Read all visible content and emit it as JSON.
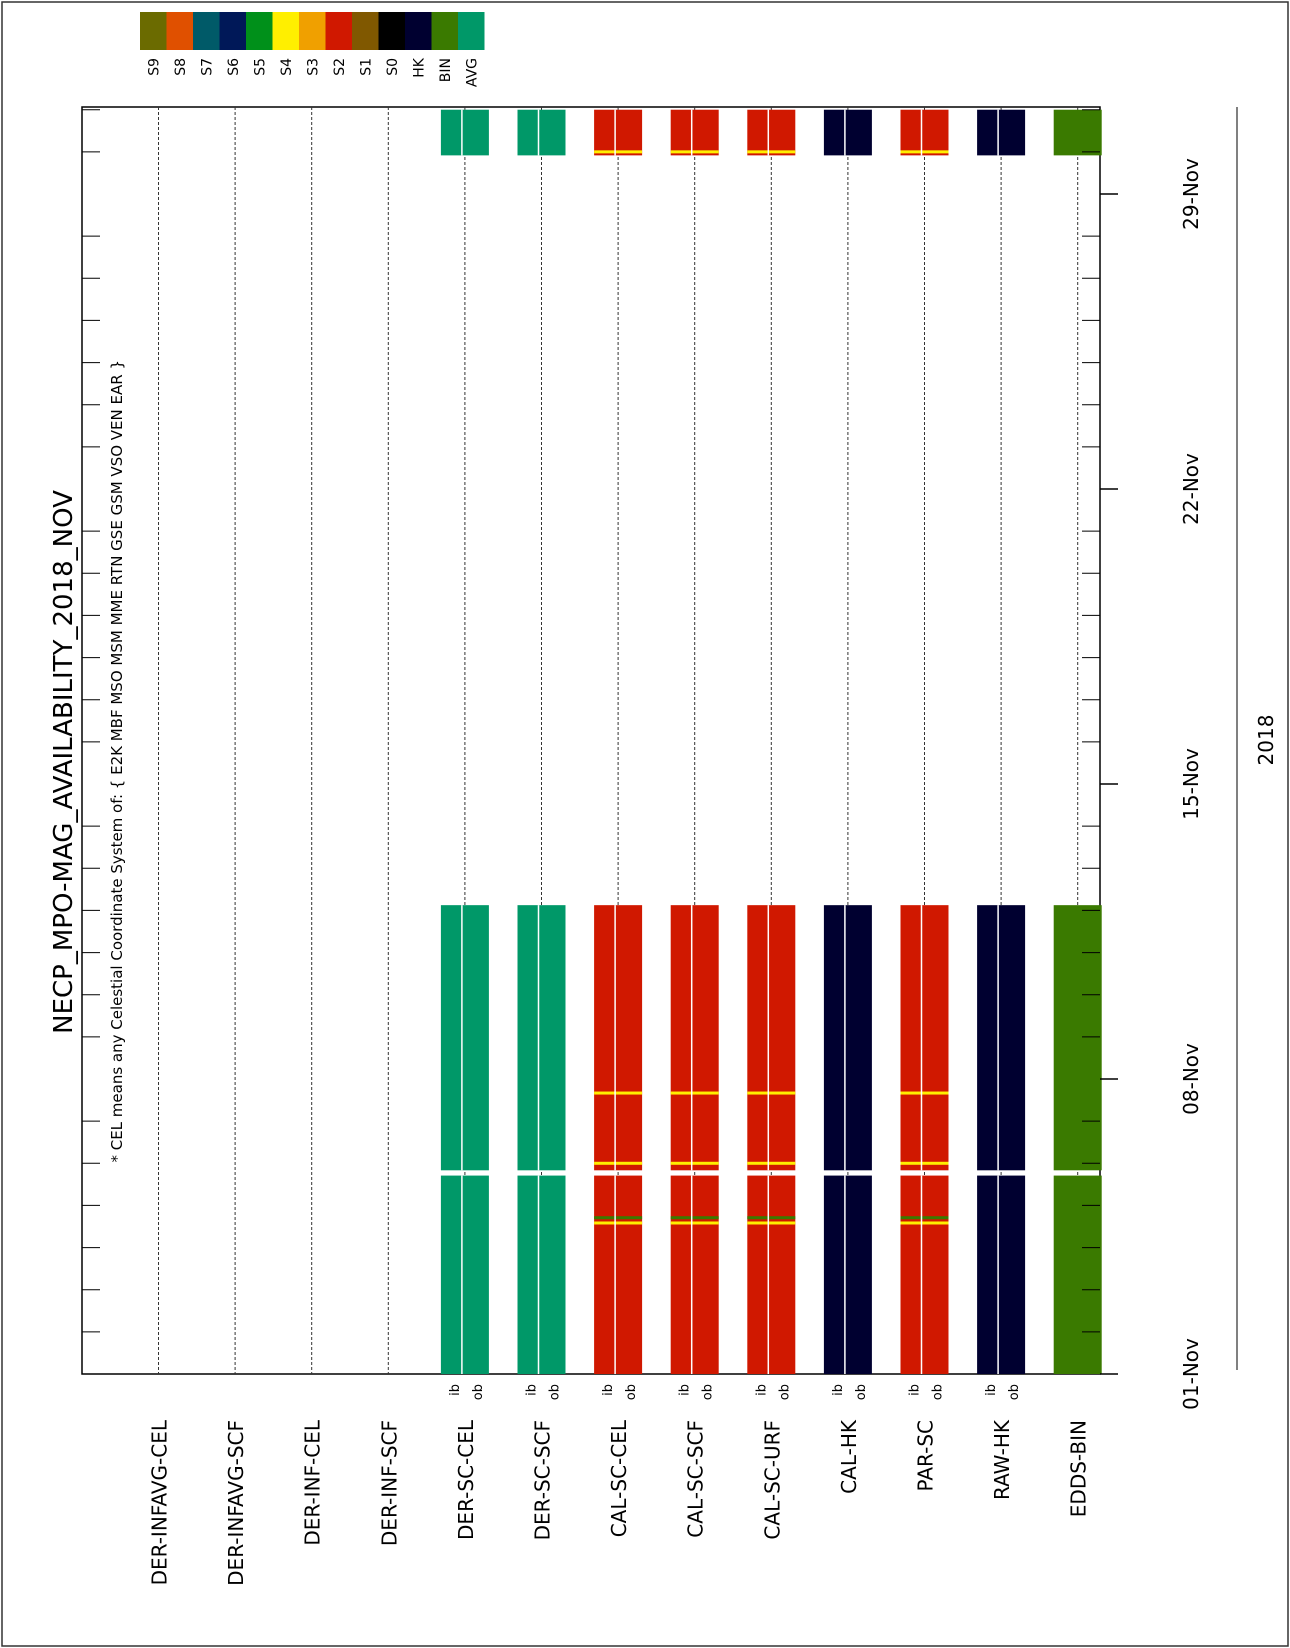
{
  "chart_data": {
    "type": "availability-timeline",
    "title": "NECP_MPO-MAG_AVAILABILITY_2018_NOV",
    "note": "* CEL means any Celestial Coordinate System of: { E2K MBF MSO MSM MME RTN GSE GSM VSO VEN EAR }",
    "year_label": "2018",
    "time_axis": {
      "start": "2018-11-01",
      "end": "2018-12-01",
      "major_ticks": [
        "2018-11-01",
        "2018-11-08",
        "2018-11-15",
        "2018-11-22",
        "2018-11-29"
      ],
      "major_labels": [
        "01-Nov",
        "08-Nov",
        "15-Nov",
        "22-Nov",
        "29-Nov"
      ],
      "minor_tick_step_days": 1
    },
    "legend": [
      {
        "label": "S9",
        "color": "#6b6b00"
      },
      {
        "label": "S8",
        "color": "#e05000"
      },
      {
        "label": "S7",
        "color": "#005a68"
      },
      {
        "label": "S6",
        "color": "#001858"
      },
      {
        "label": "S5",
        "color": "#00901a"
      },
      {
        "label": "S4",
        "color": "#ffef00"
      },
      {
        "label": "S3",
        "color": "#f0a000"
      },
      {
        "label": "S2",
        "color": "#d01800"
      },
      {
        "label": "S1",
        "color": "#805800"
      },
      {
        "label": "S0",
        "color": "#000000"
      },
      {
        "label": "HK",
        "color": "#000030"
      },
      {
        "label": "BIN",
        "color": "#3a7a00"
      },
      {
        "label": "AVG",
        "color": "#009868"
      }
    ],
    "rows": [
      {
        "name": "DER-INFAVG-CEL",
        "color": "",
        "ibob": false,
        "intervals": []
      },
      {
        "name": "DER-INFAVG-SCF",
        "color": "",
        "ibob": false,
        "intervals": []
      },
      {
        "name": "DER-INF-CEL",
        "color": "",
        "ibob": false,
        "intervals": []
      },
      {
        "name": "DER-INF-SCF",
        "color": "",
        "ibob": false,
        "intervals": []
      },
      {
        "name": "DER-SC-CEL",
        "color": "#009868",
        "ibob": true,
        "intervals": [
          [
            "2018-11-01T00:00",
            "2018-11-05T17:00"
          ],
          [
            "2018-11-05T20:00",
            "2018-11-12T03:00"
          ],
          [
            "2018-11-29T22:00",
            "2018-12-01T00:00"
          ]
        ],
        "stripes": []
      },
      {
        "name": "DER-SC-SCF",
        "color": "#009868",
        "ibob": true,
        "intervals": [
          [
            "2018-11-01T00:00",
            "2018-11-05T17:00"
          ],
          [
            "2018-11-05T20:00",
            "2018-11-12T03:00"
          ],
          [
            "2018-11-29T22:00",
            "2018-12-01T00:00"
          ]
        ],
        "stripes": []
      },
      {
        "name": "CAL-SC-CEL",
        "color": "#d01800",
        "ibob": true,
        "intervals": [
          [
            "2018-11-01T00:00",
            "2018-11-05T17:00"
          ],
          [
            "2018-11-05T20:00",
            "2018-11-12T03:00"
          ],
          [
            "2018-11-29T22:00",
            "2018-12-01T00:00"
          ]
        ],
        "stripes": [
          [
            "2018-11-04T14:00",
            "#ffef00"
          ],
          [
            "2018-11-04T17:00",
            "#3a7a00"
          ],
          [
            "2018-11-06T00:00",
            "#ffef00"
          ],
          [
            "2018-11-07T16:00",
            "#ffef00"
          ],
          [
            "2018-11-30T00:00",
            "#ffef00"
          ]
        ]
      },
      {
        "name": "CAL-SC-SCF",
        "color": "#d01800",
        "ibob": true,
        "intervals": [
          [
            "2018-11-01T00:00",
            "2018-11-05T17:00"
          ],
          [
            "2018-11-05T20:00",
            "2018-11-12T03:00"
          ],
          [
            "2018-11-29T22:00",
            "2018-12-01T00:00"
          ]
        ],
        "stripes": [
          [
            "2018-11-04T14:00",
            "#ffef00"
          ],
          [
            "2018-11-04T17:00",
            "#3a7a00"
          ],
          [
            "2018-11-06T00:00",
            "#ffef00"
          ],
          [
            "2018-11-07T16:00",
            "#ffef00"
          ],
          [
            "2018-11-30T00:00",
            "#ffef00"
          ]
        ]
      },
      {
        "name": "CAL-SC-URF",
        "color": "#d01800",
        "ibob": true,
        "intervals": [
          [
            "2018-11-01T00:00",
            "2018-11-05T17:00"
          ],
          [
            "2018-11-05T20:00",
            "2018-11-12T03:00"
          ],
          [
            "2018-11-29T22:00",
            "2018-12-01T00:00"
          ]
        ],
        "stripes": [
          [
            "2018-11-04T14:00",
            "#ffef00"
          ],
          [
            "2018-11-04T17:00",
            "#3a7a00"
          ],
          [
            "2018-11-06T00:00",
            "#ffef00"
          ],
          [
            "2018-11-07T16:00",
            "#ffef00"
          ],
          [
            "2018-11-30T00:00",
            "#ffef00"
          ]
        ]
      },
      {
        "name": "CAL-HK",
        "color": "#000030",
        "ibob": true,
        "intervals": [
          [
            "2018-11-01T00:00",
            "2018-11-05T17:00"
          ],
          [
            "2018-11-05T20:00",
            "2018-11-12T03:00"
          ],
          [
            "2018-11-29T22:00",
            "2018-12-01T00:00"
          ]
        ],
        "stripes": []
      },
      {
        "name": "PAR-SC",
        "color": "#d01800",
        "ibob": true,
        "intervals": [
          [
            "2018-11-01T00:00",
            "2018-11-05T17:00"
          ],
          [
            "2018-11-05T20:00",
            "2018-11-12T03:00"
          ],
          [
            "2018-11-29T22:00",
            "2018-12-01T00:00"
          ]
        ],
        "stripes": [
          [
            "2018-11-04T14:00",
            "#ffef00"
          ],
          [
            "2018-11-04T17:00",
            "#3a7a00"
          ],
          [
            "2018-11-06T00:00",
            "#ffef00"
          ],
          [
            "2018-11-07T16:00",
            "#ffef00"
          ],
          [
            "2018-11-30T00:00",
            "#ffef00"
          ]
        ]
      },
      {
        "name": "RAW-HK",
        "color": "#000030",
        "ibob": true,
        "intervals": [
          [
            "2018-11-01T00:00",
            "2018-11-05T17:00"
          ],
          [
            "2018-11-05T20:00",
            "2018-11-12T03:00"
          ],
          [
            "2018-11-29T22:00",
            "2018-12-01T00:00"
          ]
        ],
        "stripes": []
      },
      {
        "name": "EDDS-BIN",
        "color": "#3a7a00",
        "ibob": false,
        "intervals": [
          [
            "2018-11-01T00:00",
            "2018-11-05T17:00"
          ],
          [
            "2018-11-05T20:00",
            "2018-11-12T03:00"
          ],
          [
            "2018-11-29T22:00",
            "2018-12-01T00:00"
          ]
        ],
        "stripes": []
      }
    ],
    "ib_label": "ib",
    "ob_label": "ob"
  }
}
